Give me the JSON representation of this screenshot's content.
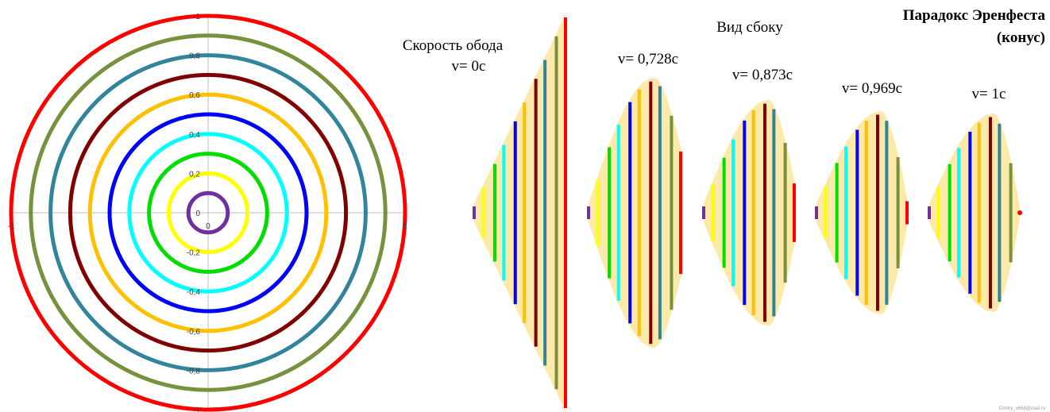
{
  "title_line1": "Парадокс Эренфеста",
  "title_line2": "(конус)",
  "side_view_label": "Вид сбоку",
  "rim_speed_label": "Скорость обода",
  "signature": "Dmitry_u666@mail.ru",
  "ring_colors": [
    "#7030a0",
    "#ffff00",
    "#00dd00",
    "#00ffff",
    "#0000ff",
    "#ffc000",
    "#800000",
    "#31849b",
    "#76923c",
    "#ff0000"
  ],
  "cone_fill": "#fde9a9",
  "axis_color": "#bfbfbf",
  "chart_data": {
    "type": "polar-rings",
    "radii": [
      0.1,
      0.2,
      0.3,
      0.4,
      0.5,
      0.6,
      0.7,
      0.8,
      0.9,
      1.0
    ],
    "y_ticks": [
      "1",
      "0,8",
      "0,6",
      "0,4",
      "0,2",
      "0",
      "-0,2",
      "-0,4",
      "-0,6",
      "-0,8",
      "-1"
    ],
    "x_ticks": [
      "-1",
      "0",
      "1"
    ],
    "grid": false
  },
  "cones": [
    {
      "label": "v= 0c",
      "speed": 0
    },
    {
      "label": "v= 0,728c",
      "speed": 0.728
    },
    {
      "label": "v= 0,873c",
      "speed": 0.873
    },
    {
      "label": "v= 0,969c",
      "speed": 0.969
    },
    {
      "label": "v= 1c",
      "speed": 1
    }
  ]
}
